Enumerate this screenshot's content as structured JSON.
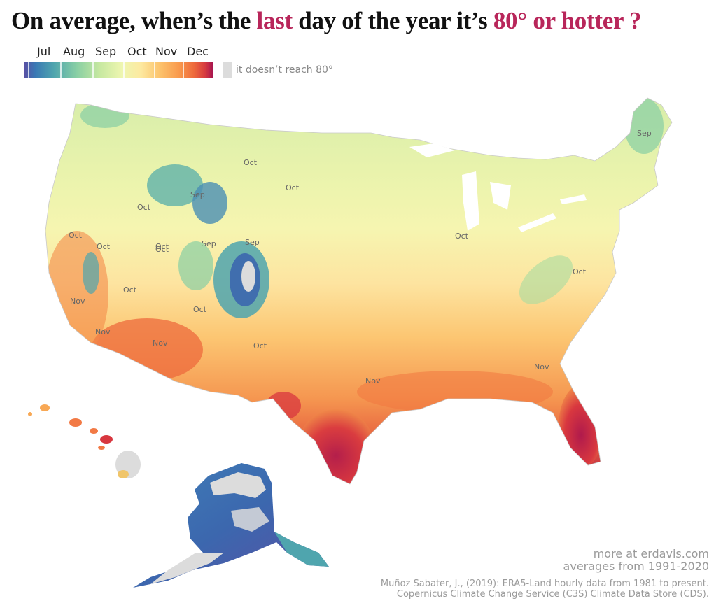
{
  "title": {
    "part1": "On average, when’s the ",
    "highlight1": "last",
    "part2": " day of the year it’s ",
    "highlight2": "80° or hotter ?"
  },
  "legend": {
    "months": [
      "Jul",
      "Aug",
      "Sep",
      "Oct",
      "Nov",
      "Dec"
    ],
    "colors": [
      "#5b4ea3",
      "#3a78b4",
      "#4fa5ae",
      "#88cfa4",
      "#c6e8a0",
      "#eef6b0",
      "#fde9a0",
      "#fcc36c",
      "#f99a4d",
      "#ee6a3c",
      "#d63a3f",
      "#a81550"
    ],
    "nodata_label": "it doesn’t reach 80°",
    "nodata_color": "#dcdcdc"
  },
  "map": {
    "contour_labels": [
      "Oct",
      "Oct",
      "Sep",
      "Oct",
      "Sep",
      "Oct",
      "Oct",
      "Oct",
      "Sep",
      "Oct",
      "Nov",
      "Oct",
      "Oct",
      "Oct",
      "Nov",
      "Nov",
      "Nov",
      "Oct",
      "Nov",
      "Oct",
      "Sep"
    ]
  },
  "credits": {
    "line1": "more at erdavis.com",
    "line2": "averages from 1991-2020",
    "line3": "Muñoz Sabater, J., (2019): ERA5-Land hourly data from 1981 to present.",
    "line4": "Copernicus Climate Change Service (C3S) Climate Data Store (CDS)."
  }
}
